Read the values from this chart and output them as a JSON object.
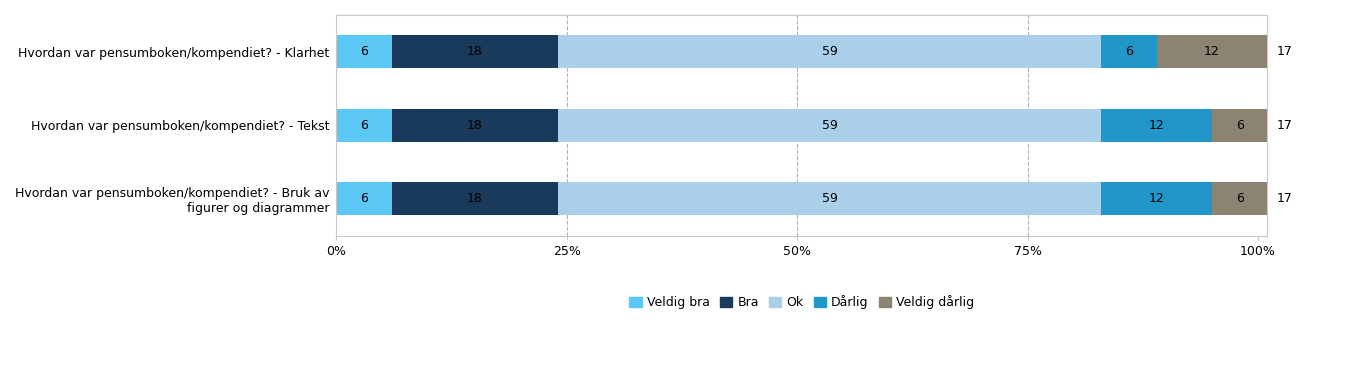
{
  "categories": [
    "Hvordan var pensumboken/kompendiet? - Klarhet",
    "Hvordan var pensumboken/kompendiet? - Tekst",
    "Hvordan var pensumboken/kompendiet? - Bruk av\nfigurer og diagrammer"
  ],
  "series": [
    {
      "label": "Veldig bra",
      "color": "#5BC8F5",
      "values": [
        6,
        6,
        6
      ]
    },
    {
      "label": "Bra",
      "color": "#1A3A5C",
      "values": [
        18,
        18,
        18
      ]
    },
    {
      "label": "Ok",
      "color": "#AACFE8",
      "values": [
        59,
        59,
        59
      ]
    },
    {
      "label": "Dårlig",
      "color": "#2196C9",
      "values": [
        6,
        12,
        12
      ]
    },
    {
      "label": "Veldig dårlig",
      "color": "#8C8472",
      "values": [
        12,
        6,
        6
      ]
    }
  ],
  "n_values": [
    17,
    17,
    17
  ],
  "xticks": [
    0,
    25,
    50,
    75,
    100
  ],
  "xticklabels": [
    "0%",
    "25%",
    "50%",
    "75%",
    "100%"
  ],
  "background_color": "#ffffff",
  "plot_bg_color": "#ffffff",
  "dashed_grid_color": "#b0b0b0",
  "bar_height": 0.45,
  "fontsize_labels": 9,
  "fontsize_bar_text": 9,
  "fontsize_legend": 9,
  "fontsize_ticks": 9,
  "fontsize_n": 9,
  "border_color": "#c8c8c8"
}
